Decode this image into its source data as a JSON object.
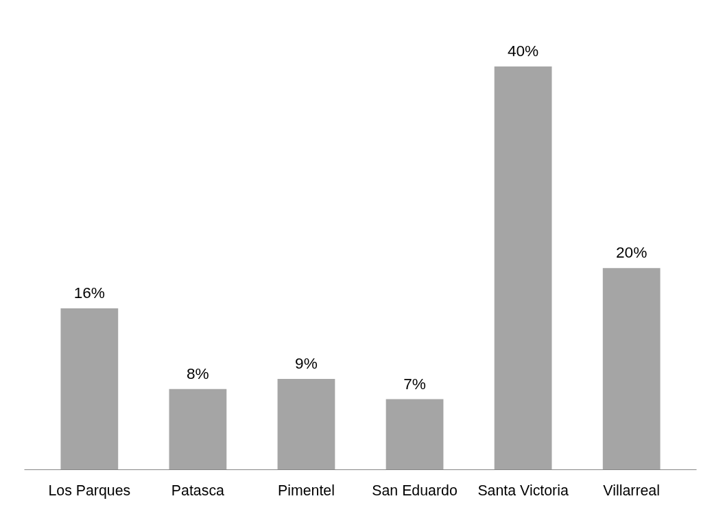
{
  "chart_data": {
    "type": "bar",
    "categories": [
      "Los Parques",
      "Patasca",
      "Pimentel",
      "San Eduardo",
      "Santa Victoria",
      "Villarreal"
    ],
    "values": [
      16,
      8,
      9,
      7,
      40,
      20
    ],
    "color": "#a5a5a5",
    "value_labels": [
      "16%",
      "8%",
      "9%",
      "7%",
      "40%",
      "20%"
    ]
  }
}
